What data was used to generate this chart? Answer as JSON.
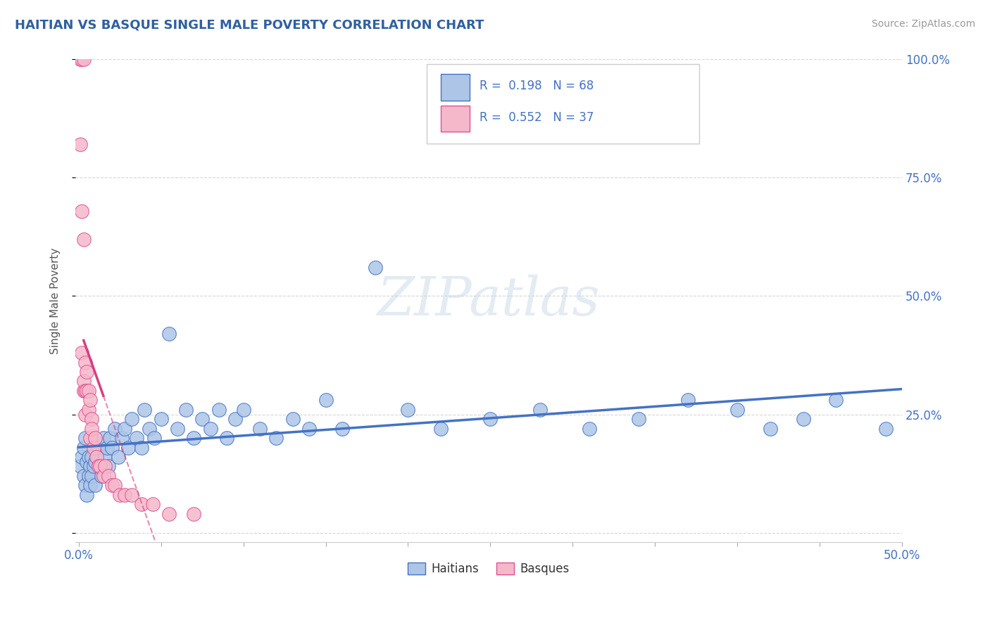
{
  "title": "HAITIAN VS BASQUE SINGLE MALE POVERTY CORRELATION CHART",
  "source_text": "Source: ZipAtlas.com",
  "ylabel": "Single Male Poverty",
  "xlim": [
    -0.002,
    0.5
  ],
  "ylim": [
    -0.02,
    1.0
  ],
  "xtick_positions": [
    0.0,
    0.05,
    0.1,
    0.15,
    0.2,
    0.25,
    0.3,
    0.35,
    0.4,
    0.45,
    0.5
  ],
  "xticklabels": [
    "0.0%",
    "",
    "",
    "",
    "",
    "",
    "",
    "",
    "",
    "",
    "50.0%"
  ],
  "ytick_positions": [
    0.0,
    0.25,
    0.5,
    0.75,
    1.0
  ],
  "yticklabels_right": [
    "",
    "25.0%",
    "50.0%",
    "75.0%",
    "100.0%"
  ],
  "blue_fill": "#adc6e8",
  "blue_edge": "#4472c4",
  "pink_fill": "#f5b8cb",
  "pink_edge": "#e05090",
  "pink_line_color": "#d44080",
  "blue_line_color": "#4472c4",
  "title_color": "#3060a0",
  "R_blue": 0.198,
  "N_blue": 68,
  "R_pink": 0.552,
  "N_pink": 37,
  "watermark": "ZIPatlas",
  "legend_blue_label": "Haitians",
  "legend_pink_label": "Basques",
  "blue_scatter_x": [
    0.001,
    0.002,
    0.003,
    0.003,
    0.004,
    0.004,
    0.005,
    0.005,
    0.006,
    0.006,
    0.007,
    0.007,
    0.008,
    0.008,
    0.009,
    0.01,
    0.01,
    0.011,
    0.012,
    0.013,
    0.014,
    0.015,
    0.016,
    0.017,
    0.018,
    0.019,
    0.02,
    0.022,
    0.024,
    0.026,
    0.028,
    0.03,
    0.032,
    0.035,
    0.038,
    0.04,
    0.043,
    0.046,
    0.05,
    0.055,
    0.06,
    0.065,
    0.07,
    0.075,
    0.08,
    0.085,
    0.09,
    0.095,
    0.1,
    0.11,
    0.12,
    0.13,
    0.14,
    0.15,
    0.16,
    0.18,
    0.2,
    0.22,
    0.25,
    0.28,
    0.31,
    0.34,
    0.37,
    0.4,
    0.42,
    0.44,
    0.46,
    0.49
  ],
  "blue_scatter_y": [
    0.14,
    0.16,
    0.12,
    0.18,
    0.1,
    0.2,
    0.15,
    0.08,
    0.16,
    0.12,
    0.14,
    0.1,
    0.16,
    0.12,
    0.14,
    0.15,
    0.1,
    0.16,
    0.18,
    0.14,
    0.12,
    0.2,
    0.16,
    0.18,
    0.14,
    0.2,
    0.18,
    0.22,
    0.16,
    0.2,
    0.22,
    0.18,
    0.24,
    0.2,
    0.18,
    0.26,
    0.22,
    0.2,
    0.24,
    0.42,
    0.22,
    0.26,
    0.2,
    0.24,
    0.22,
    0.26,
    0.2,
    0.24,
    0.26,
    0.22,
    0.2,
    0.24,
    0.22,
    0.28,
    0.22,
    0.56,
    0.26,
    0.22,
    0.24,
    0.26,
    0.22,
    0.24,
    0.28,
    0.26,
    0.22,
    0.24,
    0.28,
    0.22
  ],
  "pink_scatter_x": [
    0.001,
    0.002,
    0.003,
    0.001,
    0.002,
    0.003,
    0.002,
    0.003,
    0.003,
    0.004,
    0.004,
    0.004,
    0.005,
    0.005,
    0.006,
    0.006,
    0.007,
    0.007,
    0.008,
    0.008,
    0.009,
    0.01,
    0.011,
    0.012,
    0.013,
    0.015,
    0.016,
    0.018,
    0.02,
    0.022,
    0.025,
    0.028,
    0.032,
    0.038,
    0.045,
    0.055,
    0.07
  ],
  "pink_scatter_y": [
    1.0,
    1.0,
    1.0,
    0.82,
    0.38,
    0.3,
    0.68,
    0.62,
    0.32,
    0.36,
    0.3,
    0.25,
    0.34,
    0.3,
    0.3,
    0.26,
    0.28,
    0.2,
    0.24,
    0.22,
    0.18,
    0.2,
    0.16,
    0.14,
    0.14,
    0.12,
    0.14,
    0.12,
    0.1,
    0.1,
    0.08,
    0.08,
    0.08,
    0.06,
    0.06,
    0.04,
    0.04
  ]
}
